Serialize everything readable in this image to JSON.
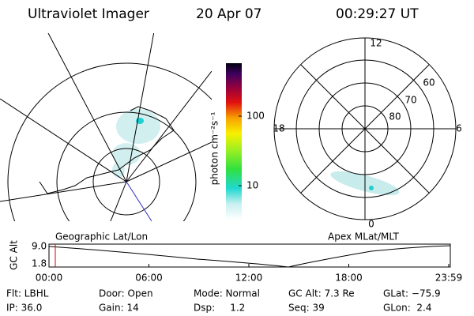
{
  "header": {
    "title": "Ultraviolet Imager",
    "date": "20 Apr 07",
    "time": "00:29:27 UT"
  },
  "geo_panel": {
    "caption": "Geographic Lat/Lon"
  },
  "colorbar": {
    "label": "photon cm⁻²s⁻¹",
    "ticks": [
      "100",
      "10"
    ]
  },
  "polar_panel": {
    "caption": "Apex MLat/MLT",
    "mlt_labels": [
      "12",
      "18",
      "6",
      "0"
    ],
    "lat_labels": [
      "60",
      "70",
      "80"
    ]
  },
  "altitude": {
    "axis_label": "GC Alt",
    "yticks": [
      "9.0",
      "1.8"
    ],
    "xticks": [
      "00:00",
      "06:00",
      "12:00",
      "18:00",
      "23:59"
    ]
  },
  "footer": {
    "rows": [
      [
        "Flt: LBHL",
        "Door: Open",
        "Mode: Normal",
        "GC Alt: 7.3 Re",
        "GLat: −75.9"
      ],
      [
        "IP: 36.0",
        "Gain: 14",
        "Dsp:     1.2",
        "Seq: 39",
        "GLon:  2.4"
      ]
    ]
  }
}
